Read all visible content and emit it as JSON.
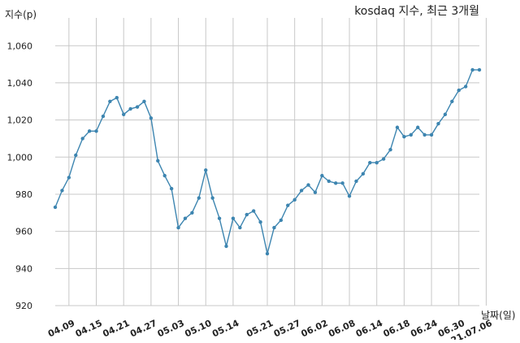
{
  "chart_data": {
    "type": "line",
    "title": "kosdaq 지수, 최근 3개월",
    "ylabel": "지수(p)",
    "xlabel": "날짜(일)",
    "ylim": [
      920,
      1075
    ],
    "yticks": [
      920,
      940,
      960,
      980,
      1000,
      1020,
      1040,
      1060
    ],
    "ytick_labels": [
      "920",
      "940",
      "960",
      "980",
      "1,000",
      "1,020",
      "1,040",
      "1,060"
    ],
    "xtick_labels": [
      "04.09",
      "04.15",
      "04.21",
      "04.27",
      "05.03",
      "05.10",
      "05.14",
      "05.21",
      "05.27",
      "06.02",
      "06.08",
      "06.14",
      "06.18",
      "06.24",
      "06.30",
      "21.07.06"
    ],
    "xtick_index": [
      2,
      6,
      10,
      14,
      18,
      22,
      26,
      31,
      35,
      39,
      43,
      47,
      51,
      55,
      59,
      63
    ],
    "grid": true,
    "line_color": "#3d85b0",
    "grid_color": "#c8c8c8",
    "series": [
      {
        "values": [
          973,
          982,
          989,
          1001,
          1010,
          1014,
          1014,
          1022,
          1030,
          1032,
          1023,
          1026,
          1027,
          1030,
          1021,
          998,
          990,
          983,
          962,
          967,
          970,
          978,
          993,
          978,
          967,
          952,
          967,
          962,
          969,
          971,
          965,
          948,
          962,
          966,
          974,
          977,
          982,
          985,
          981,
          990,
          987,
          986,
          986,
          979,
          987,
          991,
          997,
          997,
          999,
          1004,
          1016,
          1011,
          1012,
          1016,
          1012,
          1012,
          1018,
          1023,
          1030,
          1036,
          1038,
          1047,
          1047
        ]
      }
    ]
  }
}
